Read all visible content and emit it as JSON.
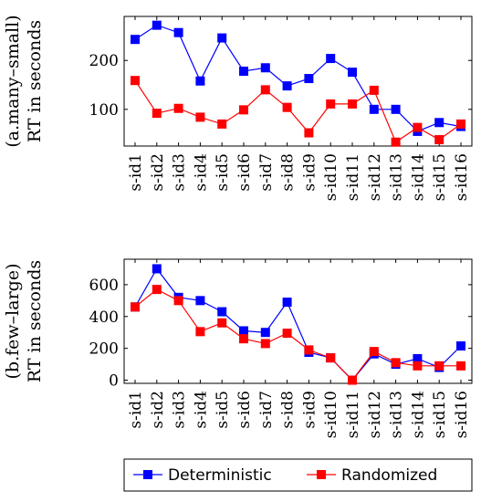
{
  "legend": {
    "entries": [
      {
        "label": "Deterministic",
        "color": "#0000ff",
        "marker": "square"
      },
      {
        "label": "Randomized",
        "color": "#ff0000",
        "marker": "square"
      }
    ]
  },
  "chart_data": [
    {
      "type": "line",
      "title": "",
      "ylabel_line1": "(a.many–small)",
      "ylabel_line2": "RT in seconds",
      "xlabel": "",
      "categories": [
        "s-id1",
        "s-id2",
        "s-id3",
        "s-id4",
        "s-id5",
        "s-id6",
        "s-id7",
        "s-id8",
        "s-id9",
        "s-id10",
        "s-id11",
        "s-id12",
        "s-id13",
        "s-id14",
        "s-id15",
        "s-id16"
      ],
      "ylim": [
        25,
        290
      ],
      "yticks": [
        100,
        200
      ],
      "grid": false,
      "legend_placement": "bottom-center",
      "series": [
        {
          "name": "Deterministic",
          "color": "#0000ff",
          "values": [
            243,
            272,
            257,
            158,
            246,
            178,
            185,
            148,
            163,
            204,
            176,
            100,
            100,
            55,
            73,
            65
          ]
        },
        {
          "name": "Randomized",
          "color": "#ff0000",
          "values": [
            159,
            92,
            102,
            84,
            70,
            99,
            140,
            104,
            52,
            111,
            111,
            139,
            33,
            63,
            38,
            70
          ]
        }
      ]
    },
    {
      "type": "line",
      "title": "",
      "ylabel_line1": "(b.few–large)",
      "ylabel_line2": "RT in seconds",
      "xlabel": "",
      "categories": [
        "s-id1",
        "s-id2",
        "s-id3",
        "s-id4",
        "s-id5",
        "s-id6",
        "s-id7",
        "s-id8",
        "s-id9",
        "s-id10",
        "s-id11",
        "s-id12",
        "s-id13",
        "s-id14",
        "s-id15",
        "s-id16"
      ],
      "ylim": [
        -20,
        760
      ],
      "yticks": [
        0,
        200,
        400,
        600
      ],
      "grid": false,
      "legend_placement": "bottom-center",
      "series": [
        {
          "name": "Deterministic",
          "color": "#0000ff",
          "values": [
            460,
            700,
            520,
            500,
            430,
            310,
            300,
            490,
            175,
            140,
            0,
            165,
            100,
            135,
            80,
            215
          ]
        },
        {
          "name": "Randomized",
          "color": "#ff0000",
          "values": [
            460,
            570,
            500,
            305,
            360,
            260,
            230,
            295,
            190,
            140,
            0,
            180,
            110,
            90,
            90,
            90
          ]
        }
      ]
    }
  ]
}
